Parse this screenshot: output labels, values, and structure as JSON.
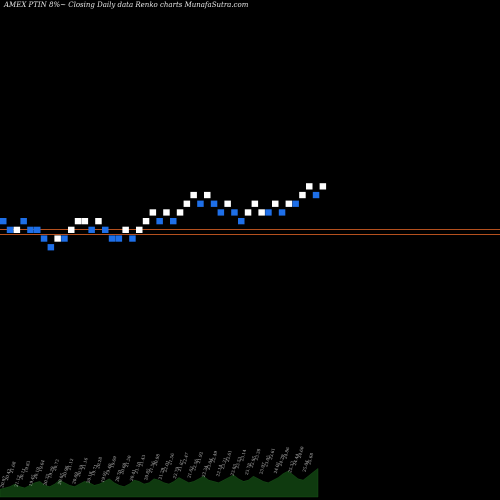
{
  "title": "AMEX  PTIN  8%~ Closing Daily data  Renko  charts MunafaSutra.com",
  "colors": {
    "background": "#000000",
    "up_brick": "#ffffff",
    "down_brick": "#1e6fe8",
    "ref_line": "#b4501e",
    "volume": "#0f3a0f"
  },
  "chart_data": {
    "type": "renko",
    "title": "AMEX  PTIN  8%~ Closing Daily data  Renko  charts MunafaSutra.com",
    "brick_levels": [
      21,
      20,
      20,
      21,
      20,
      20,
      19,
      18,
      19,
      19,
      20,
      21,
      21,
      20,
      21,
      20,
      19,
      19,
      20,
      19,
      20,
      21,
      22,
      21,
      22,
      21,
      22,
      23,
      24,
      23,
      24,
      23,
      22,
      23,
      22,
      21,
      22,
      23,
      22,
      22,
      23,
      22,
      23,
      23,
      24,
      25,
      24,
      25
    ],
    "brick_directions": [
      "down",
      "down",
      "up",
      "down",
      "down",
      "down",
      "down",
      "down",
      "up",
      "down",
      "up",
      "up",
      "up",
      "down",
      "up",
      "down",
      "down",
      "down",
      "up",
      "down",
      "up",
      "up",
      "up",
      "down",
      "up",
      "down",
      "up",
      "up",
      "up",
      "down",
      "up",
      "down",
      "down",
      "up",
      "down",
      "down",
      "up",
      "up",
      "up",
      "down",
      "up",
      "down",
      "up",
      "down",
      "up",
      "up",
      "down",
      "up"
    ],
    "reference_lines": [
      20.3,
      19.55
    ],
    "tick_labels": [
      "20.97",
      "20.42",
      "21.68",
      "21.12",
      "20.11",
      "19.83",
      "19.45",
      "20.19",
      "19.64",
      "20.35",
      "19.29",
      "20.73",
      "20.05",
      "20.96",
      "21.12",
      "20.69",
      "20.39",
      "21.16",
      "20.18",
      "19.71",
      "20.28",
      "19.91",
      "19.40",
      "19.69",
      "20.70",
      "20.60",
      "21.50",
      "20.41",
      "21.10",
      "21.43",
      "20.85",
      "21.56",
      "20.98",
      "21.29",
      "22.01",
      "21.56",
      "22.79",
      "21.87",
      "22.47",
      "21.63",
      "22.56",
      "21.92",
      "22.34",
      "23.04",
      "22.49",
      "22.14",
      "23.21",
      "22.61",
      "23.03",
      "23.53",
      "23.14",
      "23.78",
      "22.95",
      "23.38",
      "23.97",
      "23.05",
      "23.61",
      "24.01",
      "24.29",
      "24.86",
      "25.33",
      "24.44",
      "24.60",
      "25.04",
      "25.68"
    ],
    "volume": [
      6,
      7,
      8,
      10,
      8,
      7,
      9,
      11,
      12,
      9,
      8,
      10,
      13,
      11,
      9,
      8,
      10,
      12,
      11,
      9,
      10,
      12,
      14,
      11,
      9,
      8,
      10,
      13,
      12,
      10,
      11,
      14,
      13,
      11,
      10,
      12,
      15,
      13,
      11,
      12,
      14,
      16,
      13,
      12,
      11,
      13,
      15,
      17,
      14,
      12,
      13,
      16,
      14,
      12,
      11,
      13,
      15,
      18,
      20,
      17,
      14,
      13,
      16,
      19,
      22
    ]
  }
}
